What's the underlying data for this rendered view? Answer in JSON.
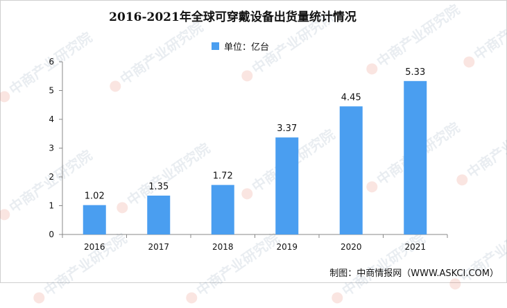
{
  "title": "2016-2021年全球可穿戴设备出货量统计情况",
  "source": "制图：中商情报网（WWW.ASKCI.COM）",
  "watermark": "中商产业研究院",
  "colors": {
    "bar": "#4a9ef0",
    "axis": "#888888",
    "text": "#111111"
  },
  "chart_data": {
    "type": "bar",
    "categories": [
      "2016",
      "2017",
      "2018",
      "2019",
      "2020",
      "2021"
    ],
    "series": [
      {
        "name": "单位：亿台",
        "values": [
          1.02,
          1.35,
          1.72,
          3.37,
          4.45,
          5.33
        ]
      }
    ],
    "data_labels": [
      "1.02",
      "1.35",
      "1.72",
      "3.37",
      "4.45",
      "5.33"
    ],
    "ylim": [
      0,
      6
    ],
    "yticks": [
      0,
      1,
      2,
      3,
      4,
      5,
      6
    ],
    "grid": false,
    "legend_position": "top-center"
  }
}
